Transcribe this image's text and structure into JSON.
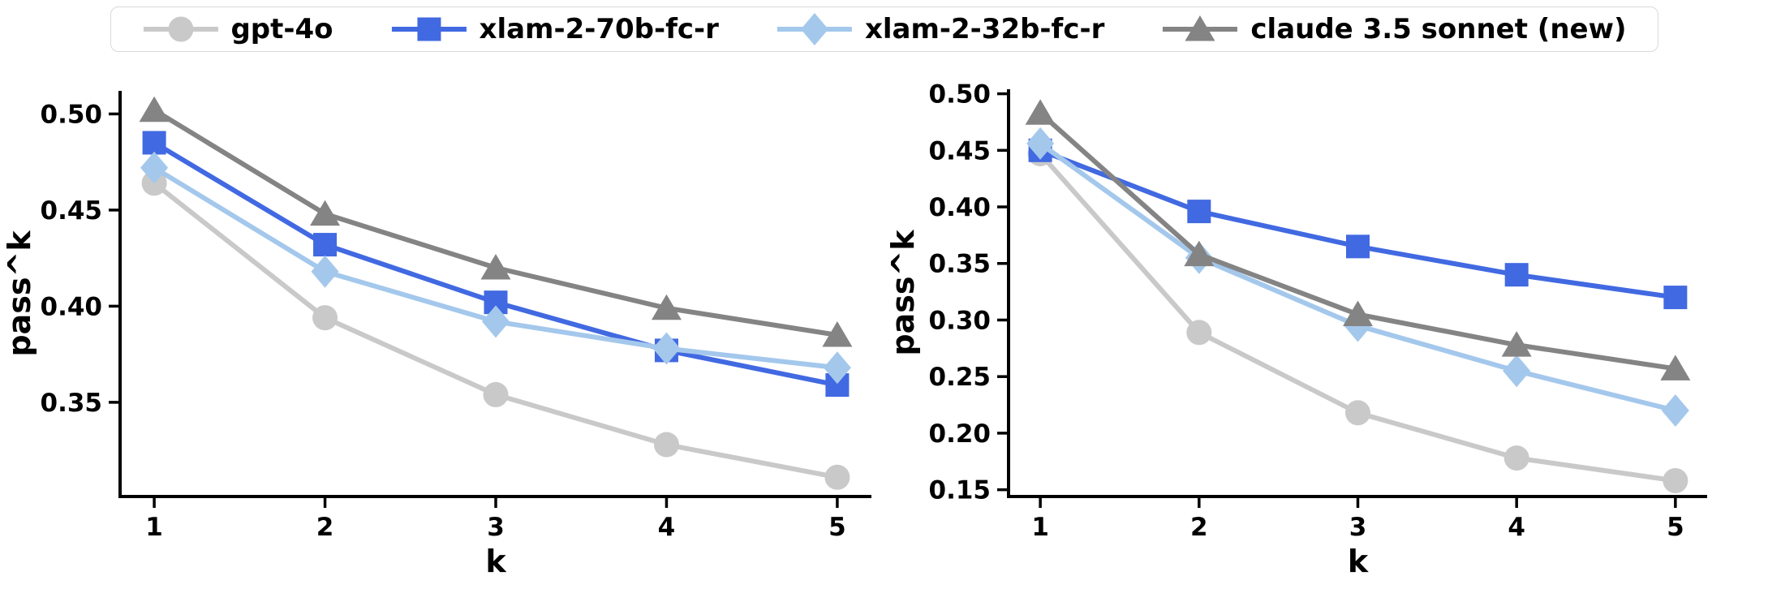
{
  "figure": {
    "background": "#ffffff",
    "text_color": "#000000",
    "axis_color": "#000000",
    "legend": {
      "position": "top-center",
      "border_color": "#d9d9d9",
      "background": "#ffffff",
      "items": [
        {
          "label": "gpt-4o",
          "color": "#c9c9c9",
          "marker": "circle"
        },
        {
          "label": "xlam-2-70b-fc-r",
          "color": "#4169e1",
          "marker": "square"
        },
        {
          "label": "xlam-2-32b-fc-r",
          "color": "#a4c8ec",
          "marker": "diamond"
        },
        {
          "label": "claude 3.5 sonnet (new)",
          "color": "#848484",
          "marker": "triangle"
        }
      ]
    }
  },
  "chart_data": [
    {
      "type": "line",
      "panel": "left",
      "title": "",
      "xlabel": "k",
      "ylabel": "pass^k",
      "x": [
        1,
        2,
        3,
        4,
        5
      ],
      "xlim": [
        0.8,
        5.2
      ],
      "ylim": [
        0.301,
        0.512
      ],
      "xticks": [
        1,
        2,
        3,
        4,
        5
      ],
      "yticks": [
        0.35,
        0.4,
        0.45,
        0.5
      ],
      "grid": false,
      "legend_position": "top-center-shared",
      "series": [
        {
          "name": "gpt-4o",
          "marker": "circle",
          "color": "#c9c9c9",
          "values": [
            0.464,
            0.394,
            0.354,
            0.328,
            0.311
          ]
        },
        {
          "name": "xlam-2-70b-fc-r",
          "marker": "square",
          "color": "#4169e1",
          "values": [
            0.485,
            0.432,
            0.402,
            0.377,
            0.359
          ]
        },
        {
          "name": "xlam-2-32b-fc-r",
          "marker": "diamond",
          "color": "#a4c8ec",
          "values": [
            0.472,
            0.418,
            0.392,
            0.378,
            0.368
          ]
        },
        {
          "name": "claude 3.5 sonnet (new)",
          "marker": "triangle",
          "color": "#848484",
          "values": [
            0.502,
            0.448,
            0.42,
            0.399,
            0.385
          ]
        }
      ]
    },
    {
      "type": "line",
      "panel": "right",
      "title": "",
      "xlabel": "k",
      "ylabel": "pass^k",
      "x": [
        1,
        2,
        3,
        4,
        5
      ],
      "xlim": [
        0.8,
        5.2
      ],
      "ylim": [
        0.144,
        0.504
      ],
      "xticks": [
        1,
        2,
        3,
        4,
        5
      ],
      "yticks": [
        0.15,
        0.2,
        0.25,
        0.3,
        0.35,
        0.4,
        0.45,
        0.5
      ],
      "grid": false,
      "legend_position": "top-center-shared",
      "series": [
        {
          "name": "gpt-4o",
          "marker": "circle",
          "color": "#c9c9c9",
          "values": [
            0.447,
            0.289,
            0.218,
            0.178,
            0.158
          ]
        },
        {
          "name": "xlam-2-70b-fc-r",
          "marker": "square",
          "color": "#4169e1",
          "values": [
            0.45,
            0.396,
            0.365,
            0.34,
            0.32
          ]
        },
        {
          "name": "xlam-2-32b-fc-r",
          "marker": "diamond",
          "color": "#a4c8ec",
          "values": [
            0.456,
            0.355,
            0.295,
            0.255,
            0.22
          ]
        },
        {
          "name": "claude 3.5 sonnet (new)",
          "marker": "triangle",
          "color": "#848484",
          "values": [
            0.483,
            0.358,
            0.305,
            0.278,
            0.257
          ]
        }
      ]
    }
  ]
}
